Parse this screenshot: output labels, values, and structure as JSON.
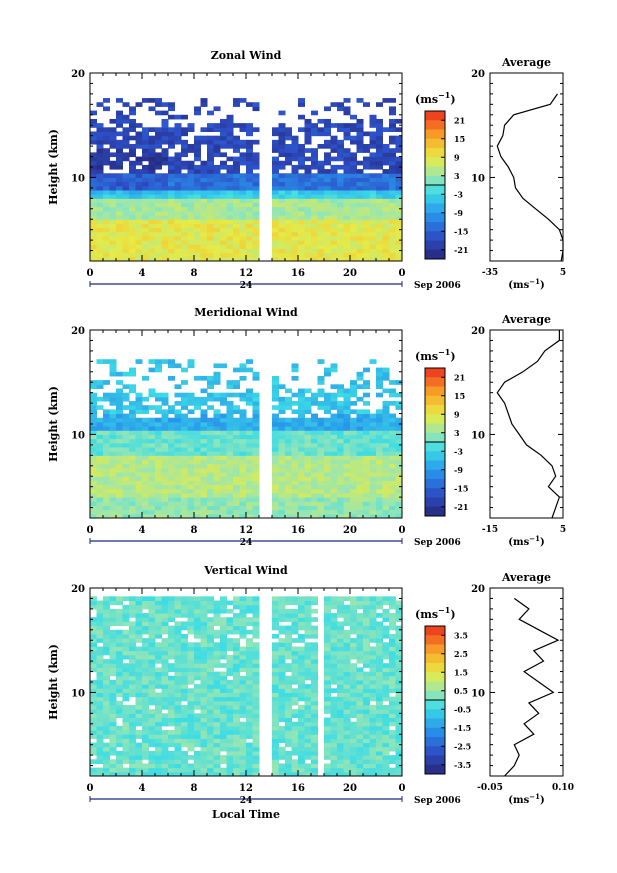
{
  "chart_data": [
    {
      "type": "heatmap",
      "title": "Zonal Wind",
      "ylabel": "Height (km)",
      "ylim": [
        2,
        20
      ],
      "y_ticks": [
        10,
        20
      ],
      "xlim": [
        0,
        24
      ],
      "x_tick_labels": [
        "0",
        "4",
        "8",
        "12",
        "16",
        "20",
        "0"
      ],
      "date_marker": "24",
      "date_label": "Sep 2006",
      "colorbar": {
        "unit": "(ms",
        "unit_sup": "−1",
        "unit_close": ")",
        "tick_labels": [
          "21",
          "15",
          "9",
          "3",
          "-3",
          "-9",
          "-15",
          "-21"
        ],
        "range": [
          -24,
          24
        ]
      },
      "average_profile": {
        "title": "Average",
        "x_tick_labels": [
          "-35",
          "5"
        ],
        "xlim": [
          -35,
          5
        ],
        "xlabel": "(ms",
        "xlabel_sup": "−1",
        "xlabel_close": ")",
        "y_tick_labels": [
          "10",
          "20"
        ],
        "height_km": [
          2,
          3,
          4,
          5,
          6,
          7,
          8,
          9,
          10,
          11,
          12,
          13,
          14,
          15,
          16,
          17,
          18
        ],
        "speed": [
          4,
          5,
          5,
          3,
          -3,
          -10,
          -17,
          -21,
          -22,
          -25,
          -29,
          -31,
          -28,
          -27,
          -22,
          -2,
          2
        ]
      }
    },
    {
      "type": "heatmap",
      "title": "Meridional Wind",
      "ylabel": "Height (km)",
      "ylim": [
        2,
        20
      ],
      "y_ticks": [
        10,
        20
      ],
      "xlim": [
        0,
        24
      ],
      "x_tick_labels": [
        "0",
        "4",
        "8",
        "12",
        "16",
        "20",
        "0"
      ],
      "date_marker": "24",
      "date_label": "Sep 2006",
      "colorbar": {
        "unit": "(ms",
        "unit_sup": "−1",
        "unit_close": ")",
        "tick_labels": [
          "21",
          "15",
          "9",
          "3",
          "-3",
          "-9",
          "-15",
          "-21"
        ],
        "range": [
          -24,
          24
        ]
      },
      "average_profile": {
        "title": "Average",
        "x_tick_labels": [
          "-15",
          "5"
        ],
        "xlim": [
          -15,
          5
        ],
        "xlabel": "(ms",
        "xlabel_sup": "−1",
        "xlabel_close": ")",
        "y_tick_labels": [
          "10",
          "20"
        ],
        "height_km": [
          2,
          3,
          4,
          5,
          6,
          7,
          8,
          9,
          10,
          11,
          12,
          13,
          14,
          15,
          16,
          17,
          18,
          19,
          20
        ],
        "speed": [
          2,
          3,
          4,
          1,
          3,
          2,
          -1,
          -5,
          -7,
          -9,
          -10,
          -11,
          -13,
          -11,
          -6,
          -2,
          0,
          4,
          4
        ]
      }
    },
    {
      "type": "heatmap",
      "title": "Vertical Wind",
      "ylabel": "Height (km)",
      "ylim": [
        2,
        20
      ],
      "y_ticks": [
        10,
        20
      ],
      "xlim": [
        0,
        24
      ],
      "x_tick_labels": [
        "0",
        "4",
        "8",
        "12",
        "16",
        "20",
        "0"
      ],
      "date_marker": "24",
      "date_label": "Sep 2006",
      "xlabel": "Local Time",
      "colorbar": {
        "unit": "(ms",
        "unit_sup": "−1",
        "unit_close": ")",
        "tick_labels": [
          "3.5",
          "2.5",
          "1.5",
          "0.5",
          "-0.5",
          "-1.5",
          "-2.5",
          "-3.5"
        ],
        "range": [
          -4,
          4
        ]
      },
      "average_profile": {
        "title": "Average",
        "x_tick_labels": [
          "-0.05",
          "0.10"
        ],
        "xlim": [
          -0.05,
          0.1
        ],
        "xlabel": "(ms",
        "xlabel_sup": "−1",
        "xlabel_close": ")",
        "y_tick_labels": [
          "10",
          "20"
        ],
        "height_km": [
          2,
          3,
          4,
          5,
          6,
          7,
          8,
          9,
          10,
          11,
          12,
          13,
          14,
          15,
          16,
          17,
          18,
          19
        ],
        "speed": [
          -0.02,
          0.0,
          0.01,
          0.0,
          0.04,
          0.02,
          0.05,
          0.03,
          0.08,
          0.05,
          0.02,
          0.06,
          0.04,
          0.09,
          0.05,
          0.01,
          0.03,
          0.0
        ]
      }
    }
  ]
}
